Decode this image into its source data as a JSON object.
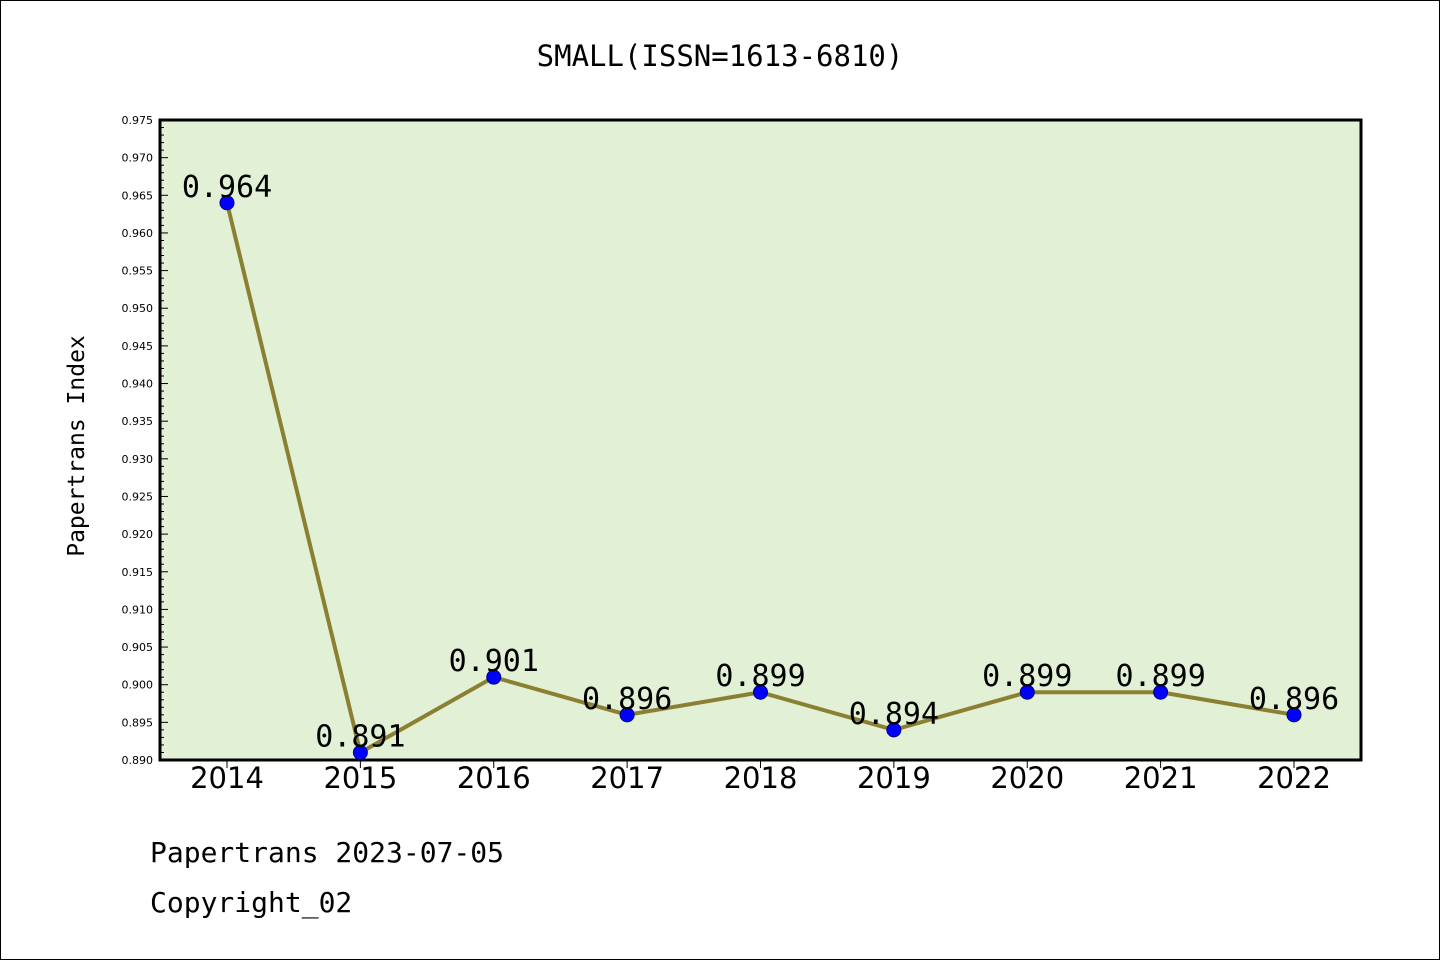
{
  "chart_data": {
    "type": "line",
    "title": "SMALL(ISSN=1613-6810)",
    "xlabel": "",
    "ylabel": "Papertrans Index",
    "categories": [
      "2014",
      "2015",
      "2016",
      "2017",
      "2018",
      "2019",
      "2020",
      "2021",
      "2022"
    ],
    "series": [
      {
        "values": [
          0.964,
          0.891,
          0.901,
          0.896,
          0.899,
          0.894,
          0.899,
          0.899,
          0.896
        ],
        "labels": [
          "0.964",
          "0.891",
          "0.901",
          "0.896",
          "0.899",
          "0.894",
          "0.899",
          "0.899",
          "0.896"
        ]
      }
    ],
    "ylim": [
      0.89,
      0.975
    ],
    "yticks": [
      "0.890",
      "0.895",
      "0.900",
      "0.905",
      "0.910",
      "0.915",
      "0.920",
      "0.925",
      "0.930",
      "0.935",
      "0.940",
      "0.945",
      "0.950",
      "0.955",
      "0.960",
      "0.965",
      "0.970",
      "0.975"
    ],
    "grid": false,
    "legend": "none",
    "colors": {
      "plot_background": "#e2f0d6",
      "line": "#8b8032",
      "marker": "#0000ff",
      "axis": "#000000"
    }
  },
  "footer": {
    "date_line": "Papertrans 2023-07-05",
    "copyright_line": "Copyright_02"
  }
}
